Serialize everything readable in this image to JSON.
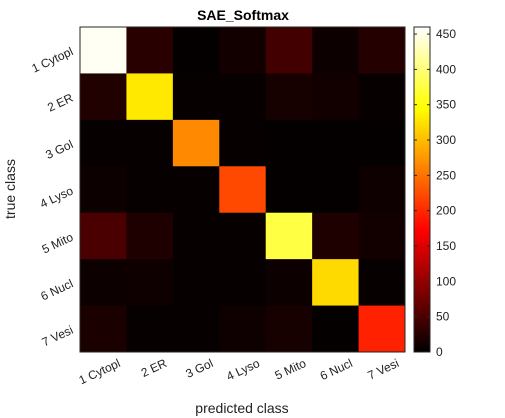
{
  "chart_data": {
    "type": "heatmap",
    "title": "SAE_Softmax",
    "xlabel": "predicted class",
    "ylabel": "true class",
    "x_categories": [
      "1 Cytopl",
      "2 ER",
      "3 Gol",
      "4 Lyso",
      "5 Mito",
      "6 Nucl",
      "7 Vesi"
    ],
    "y_categories": [
      "1 Cytopl",
      "2 ER",
      "3 Gol",
      "4 Lyso",
      "5 Mito",
      "6 Nucl",
      "7 Vesi"
    ],
    "values": [
      [
        455,
        28,
        3,
        12,
        45,
        8,
        25
      ],
      [
        22,
        330,
        4,
        5,
        15,
        12,
        4
      ],
      [
        4,
        4,
        265,
        4,
        3,
        3,
        3
      ],
      [
        8,
        4,
        4,
        222,
        3,
        3,
        10
      ],
      [
        50,
        20,
        4,
        4,
        375,
        20,
        12
      ],
      [
        8,
        10,
        4,
        4,
        8,
        320,
        4
      ],
      [
        18,
        4,
        4,
        10,
        15,
        3,
        195
      ]
    ],
    "colormap": "hot",
    "clim": [
      0,
      460
    ],
    "colorbar_ticks": [
      0,
      50,
      100,
      150,
      200,
      250,
      300,
      350,
      400,
      450
    ]
  }
}
